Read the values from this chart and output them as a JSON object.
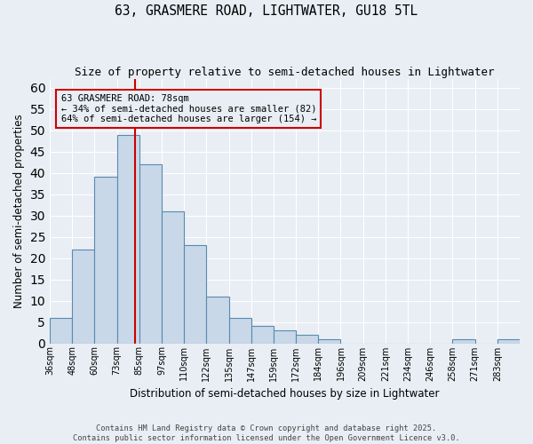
{
  "title": "63, GRASMERE ROAD, LIGHTWATER, GU18 5TL",
  "subtitle": "Size of property relative to semi-detached houses in Lightwater",
  "xlabel": "Distribution of semi-detached houses by size in Lightwater",
  "ylabel": "Number of semi-detached properties",
  "bin_labels": [
    "36sqm",
    "48sqm",
    "60sqm",
    "73sqm",
    "85sqm",
    "97sqm",
    "110sqm",
    "122sqm",
    "135sqm",
    "147sqm",
    "159sqm",
    "172sqm",
    "184sqm",
    "196sqm",
    "209sqm",
    "221sqm",
    "234sqm",
    "246sqm",
    "258sqm",
    "271sqm",
    "283sqm"
  ],
  "counts": [
    6,
    22,
    39,
    49,
    42,
    31,
    23,
    11,
    6,
    4,
    3,
    2,
    1,
    0,
    0,
    0,
    0,
    0,
    1,
    0,
    1
  ],
  "property_bin_index": 3,
  "bar_color": "#c8d8e8",
  "bar_edge_color": "#5a8ab0",
  "vline_color": "#cc0000",
  "annotation_line1": "63 GRASMERE ROAD: 78sqm",
  "annotation_line2": "← 34% of semi-detached houses are smaller (82)",
  "annotation_line3": "64% of semi-detached houses are larger (154) →",
  "annotation_box_color": "#cc0000",
  "vline_x": 3.8,
  "ylim": [
    0,
    62
  ],
  "yticks": [
    0,
    5,
    10,
    15,
    20,
    25,
    30,
    35,
    40,
    45,
    50,
    55,
    60
  ],
  "bg_color": "#e8eef4",
  "footer1": "Contains HM Land Registry data © Crown copyright and database right 2025.",
  "footer2": "Contains public sector information licensed under the Open Government Licence v3.0."
}
